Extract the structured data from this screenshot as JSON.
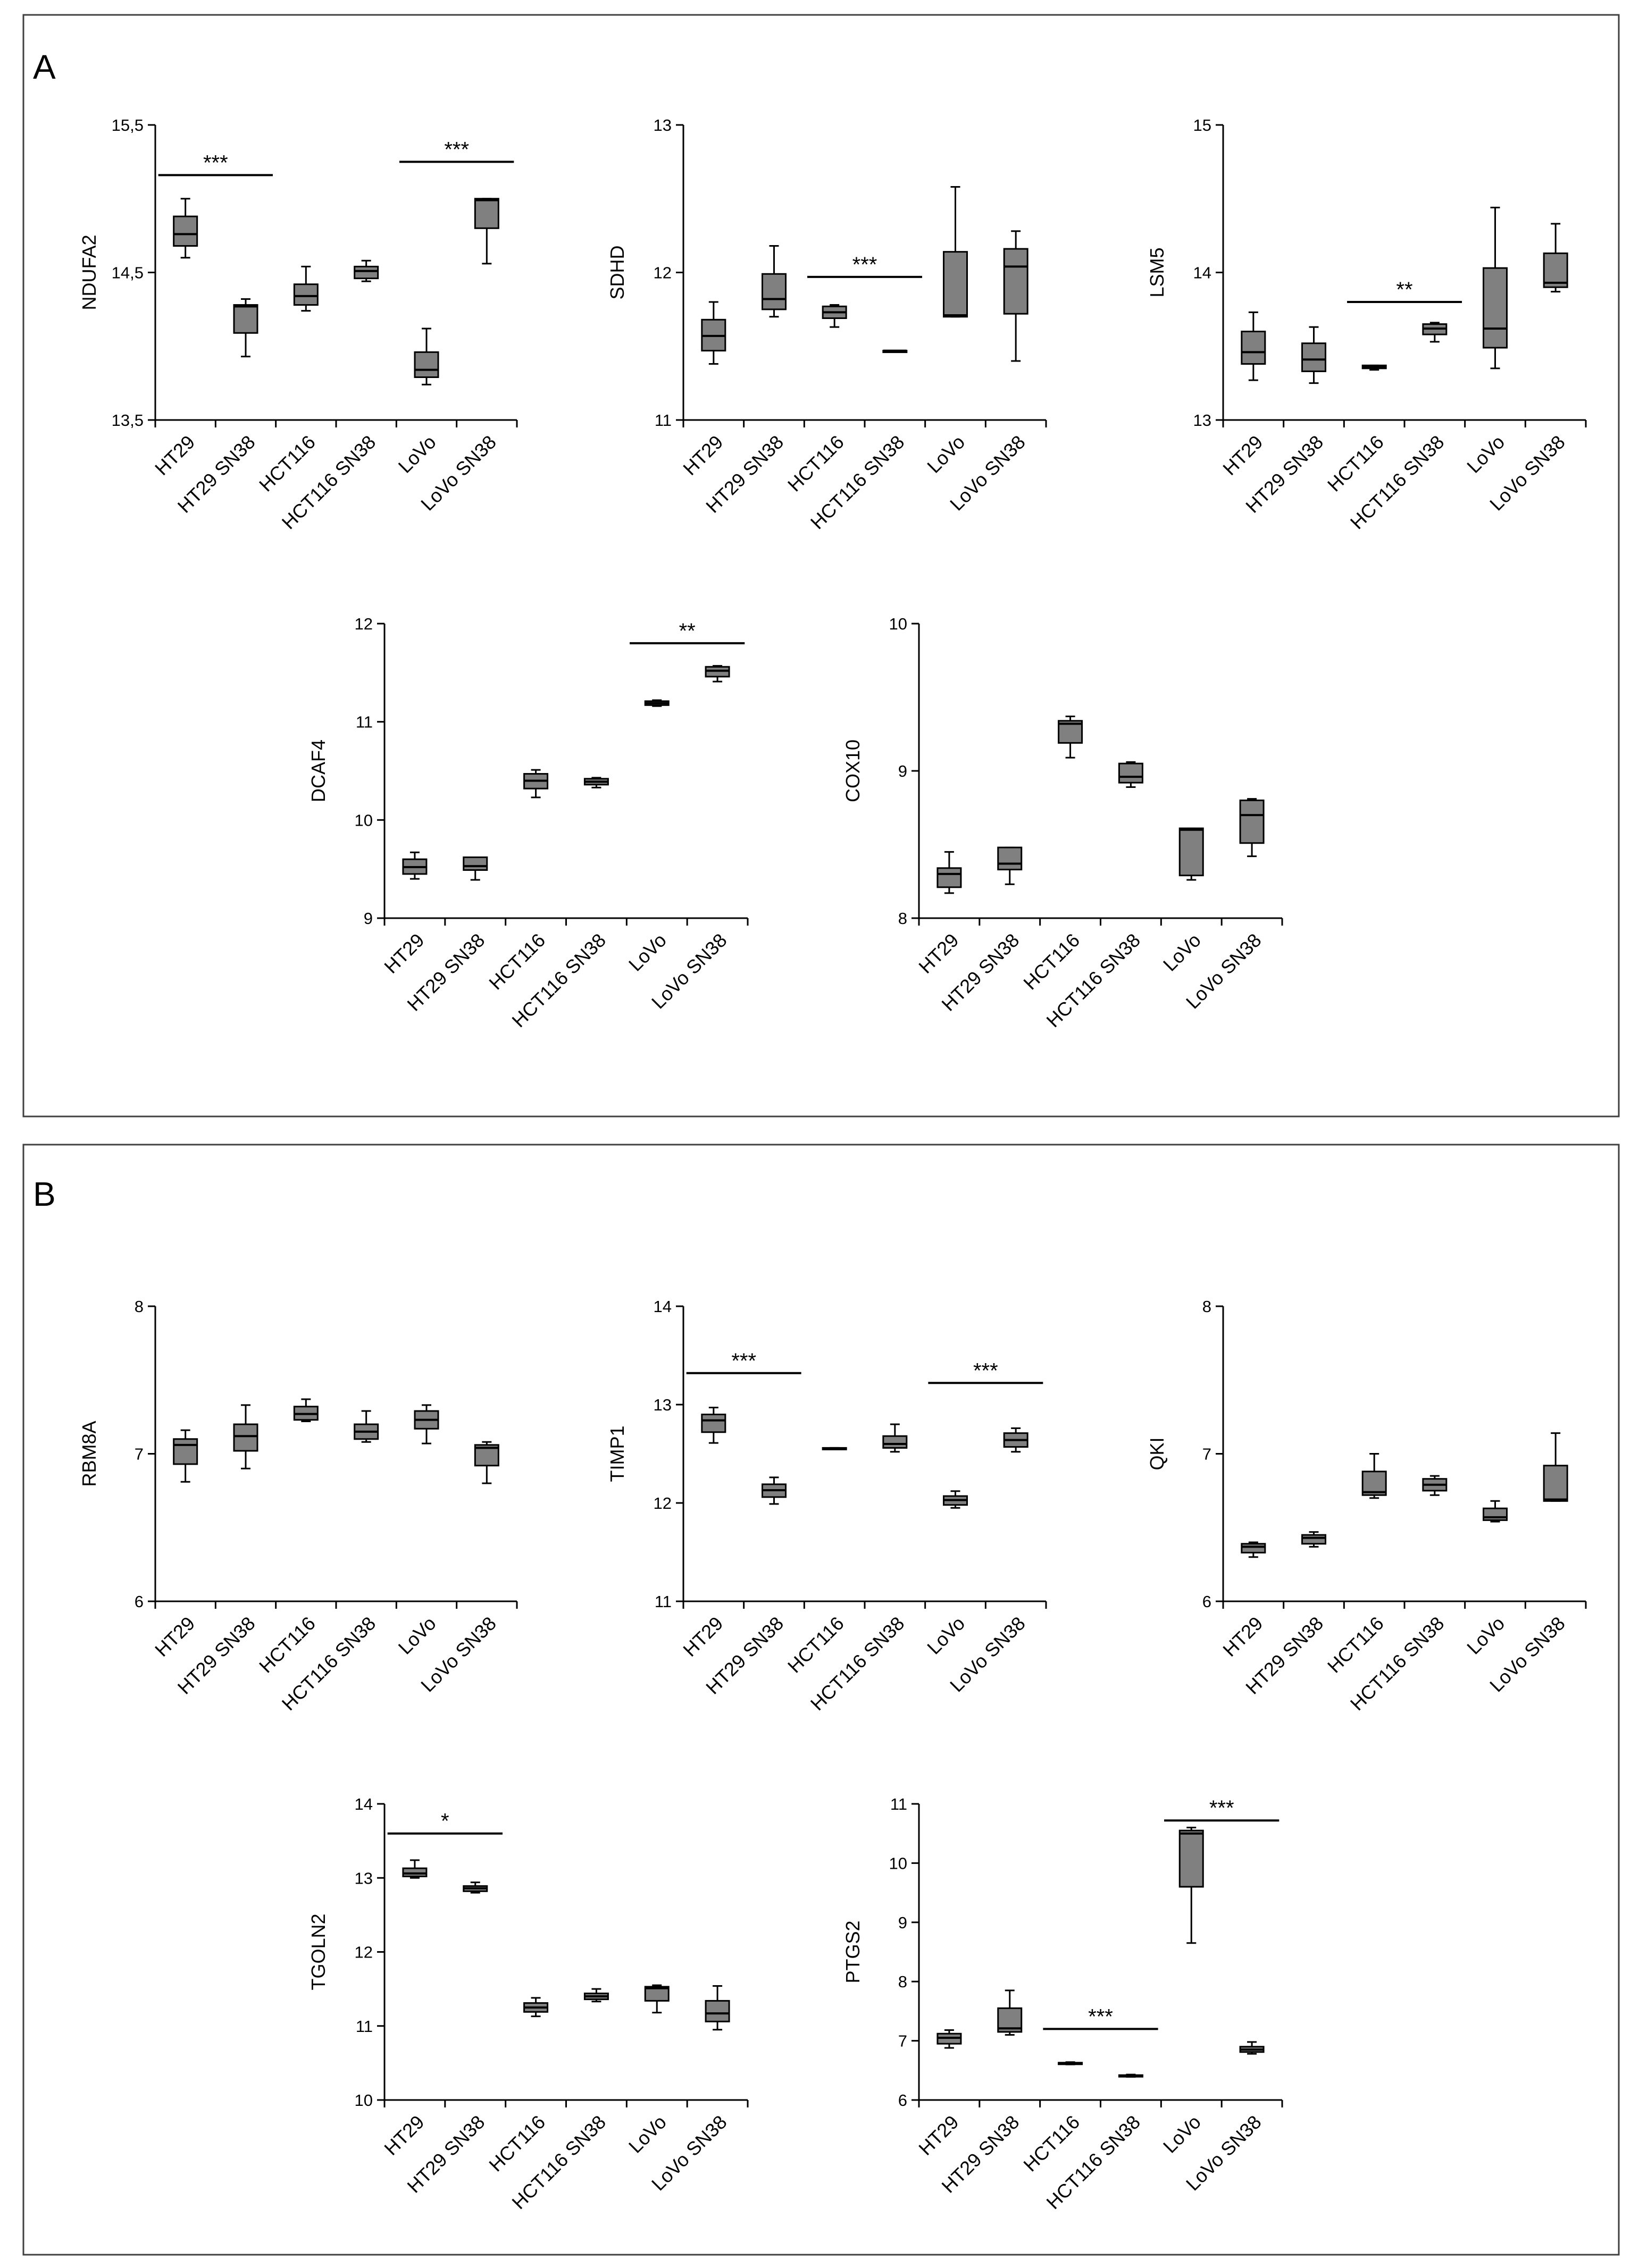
{
  "colors": {
    "box_fill": "#808080",
    "stroke": "#000000",
    "panel_border": "#404040"
  },
  "panels": [
    {
      "label": "A"
    },
    {
      "label": "B"
    }
  ],
  "chart_data": [
    {
      "type": "box",
      "panel": "A",
      "title": "",
      "ylabel": "NDUFA2",
      "xlabel": "",
      "ylim": [
        13.5,
        15.5
      ],
      "yticks": [
        13.5,
        14.5,
        15.5
      ],
      "ytick_labels": [
        "13,5",
        "14,5",
        "15,5"
      ],
      "categories": [
        "HT29",
        "HT29 SN38",
        "HCT116",
        "HCT116 SN38",
        "LoVo",
        "LoVo SN38"
      ],
      "boxes": [
        {
          "min": 14.6,
          "q1": 14.68,
          "median": 14.76,
          "q3": 14.88,
          "max": 15.0
        },
        {
          "min": 13.93,
          "q1": 14.09,
          "median": 14.27,
          "q3": 14.28,
          "max": 14.32
        },
        {
          "min": 14.24,
          "q1": 14.28,
          "median": 14.34,
          "q3": 14.42,
          "max": 14.54
        },
        {
          "min": 14.44,
          "q1": 14.46,
          "median": 14.51,
          "q3": 14.54,
          "max": 14.58
        },
        {
          "min": 13.74,
          "q1": 13.79,
          "median": 13.84,
          "q3": 13.96,
          "max": 14.12
        },
        {
          "min": 14.56,
          "q1": 14.8,
          "median": 14.99,
          "q3": 15.0,
          "max": 15.0
        }
      ],
      "significance": [
        {
          "from": 0,
          "to": 1,
          "label": "***",
          "y": 15.16
        },
        {
          "from": 4,
          "to": 5,
          "label": "***",
          "y": 15.25
        }
      ]
    },
    {
      "type": "box",
      "panel": "A",
      "title": "",
      "ylabel": "SDHD",
      "xlabel": "",
      "ylim": [
        11,
        13
      ],
      "yticks": [
        11,
        12,
        13
      ],
      "ytick_labels": [
        "11",
        "12",
        "13"
      ],
      "categories": [
        "HT29",
        "HT29 SN38",
        "HCT116",
        "HCT116 SN38",
        "LoVo",
        "LoVo SN38"
      ],
      "boxes": [
        {
          "min": 11.38,
          "q1": 11.47,
          "median": 11.57,
          "q3": 11.68,
          "max": 11.8
        },
        {
          "min": 11.7,
          "q1": 11.75,
          "median": 11.82,
          "q3": 11.99,
          "max": 12.18
        },
        {
          "min": 11.63,
          "q1": 11.69,
          "median": 11.73,
          "q3": 11.77,
          "max": 11.78
        },
        {
          "min": 11.47,
          "q1": 11.47,
          "median": 11.47,
          "q3": 11.47,
          "max": 11.47
        },
        {
          "min": 11.7,
          "q1": 11.7,
          "median": 11.71,
          "q3": 12.14,
          "max": 12.58
        },
        {
          "min": 11.4,
          "q1": 11.72,
          "median": 12.04,
          "q3": 12.16,
          "max": 12.28
        }
      ],
      "significance": [
        {
          "from": 2,
          "to": 3,
          "label": "***",
          "y": 11.97
        }
      ]
    },
    {
      "type": "box",
      "panel": "A",
      "title": "",
      "ylabel": "LSM5",
      "xlabel": "",
      "ylim": [
        13,
        15
      ],
      "yticks": [
        13,
        14,
        15
      ],
      "ytick_labels": [
        "13",
        "14",
        "15"
      ],
      "categories": [
        "HT29",
        "HT29 SN38",
        "HCT116",
        "HCT116 SN38",
        "LoVo",
        "LoVo SN38"
      ],
      "boxes": [
        {
          "min": 13.27,
          "q1": 13.38,
          "median": 13.46,
          "q3": 13.6,
          "max": 13.73
        },
        {
          "min": 13.25,
          "q1": 13.33,
          "median": 13.41,
          "q3": 13.52,
          "max": 13.63
        },
        {
          "min": 13.34,
          "q1": 13.35,
          "median": 13.36,
          "q3": 13.37,
          "max": 13.37
        },
        {
          "min": 13.53,
          "q1": 13.58,
          "median": 13.62,
          "q3": 13.65,
          "max": 13.66
        },
        {
          "min": 13.35,
          "q1": 13.49,
          "median": 13.62,
          "q3": 14.03,
          "max": 14.44
        },
        {
          "min": 13.87,
          "q1": 13.9,
          "median": 13.93,
          "q3": 14.13,
          "max": 14.33
        }
      ],
      "significance": [
        {
          "from": 2,
          "to": 3,
          "label": "**",
          "y": 13.8
        }
      ]
    },
    {
      "type": "box",
      "panel": "A",
      "title": "",
      "ylabel": "DCAF4",
      "xlabel": "",
      "ylim": [
        9,
        12
      ],
      "yticks": [
        9,
        10,
        11,
        12
      ],
      "ytick_labels": [
        "9",
        "10",
        "11",
        "12"
      ],
      "categories": [
        "HT29",
        "HT29 SN38",
        "HCT116",
        "HCT116 SN38",
        "LoVo",
        "LoVo SN38"
      ],
      "boxes": [
        {
          "min": 9.4,
          "q1": 9.45,
          "median": 9.52,
          "q3": 9.6,
          "max": 9.67
        },
        {
          "min": 9.39,
          "q1": 9.49,
          "median": 9.53,
          "q3": 9.62,
          "max": 9.62
        },
        {
          "min": 10.23,
          "q1": 10.32,
          "median": 10.4,
          "q3": 10.47,
          "max": 10.51
        },
        {
          "min": 10.33,
          "q1": 10.36,
          "median": 10.39,
          "q3": 10.42,
          "max": 10.43
        },
        {
          "min": 11.16,
          "q1": 11.17,
          "median": 11.19,
          "q3": 11.21,
          "max": 11.22
        },
        {
          "min": 11.41,
          "q1": 11.46,
          "median": 11.52,
          "q3": 11.56,
          "max": 11.57
        }
      ],
      "significance": [
        {
          "from": 4,
          "to": 5,
          "label": "**",
          "y": 11.8
        }
      ]
    },
    {
      "type": "box",
      "panel": "A",
      "title": "",
      "ylabel": "COX10",
      "xlabel": "",
      "ylim": [
        8,
        10
      ],
      "yticks": [
        8,
        9,
        10
      ],
      "ytick_labels": [
        "8",
        "9",
        "10"
      ],
      "categories": [
        "HT29",
        "HT29 SN38",
        "HCT116",
        "HCT116 SN38",
        "LoVo",
        "LoVo SN38"
      ],
      "boxes": [
        {
          "min": 8.17,
          "q1": 8.21,
          "median": 8.3,
          "q3": 8.34,
          "max": 8.45
        },
        {
          "min": 8.23,
          "q1": 8.33,
          "median": 8.37,
          "q3": 8.48,
          "max": 8.48
        },
        {
          "min": 9.09,
          "q1": 9.19,
          "median": 9.32,
          "q3": 9.34,
          "max": 9.37
        },
        {
          "min": 8.89,
          "q1": 8.92,
          "median": 8.96,
          "q3": 9.05,
          "max": 9.06
        },
        {
          "min": 8.26,
          "q1": 8.29,
          "median": 8.6,
          "q3": 8.61,
          "max": 8.61
        },
        {
          "min": 8.42,
          "q1": 8.51,
          "median": 8.7,
          "q3": 8.8,
          "max": 8.81
        }
      ],
      "significance": []
    },
    {
      "type": "box",
      "panel": "B",
      "title": "",
      "ylabel": "RBM8A",
      "xlabel": "",
      "ylim": [
        6,
        8
      ],
      "yticks": [
        6,
        7,
        8
      ],
      "ytick_labels": [
        "6",
        "7",
        "8"
      ],
      "categories": [
        "HT29",
        "HT29 SN38",
        "HCT116",
        "HCT116 SN38",
        "LoVo",
        "LoVo SN38"
      ],
      "boxes": [
        {
          "min": 6.81,
          "q1": 6.93,
          "median": 7.06,
          "q3": 7.1,
          "max": 7.16
        },
        {
          "min": 6.9,
          "q1": 7.02,
          "median": 7.12,
          "q3": 7.2,
          "max": 7.33
        },
        {
          "min": 7.22,
          "q1": 7.23,
          "median": 7.27,
          "q3": 7.32,
          "max": 7.37
        },
        {
          "min": 7.08,
          "q1": 7.1,
          "median": 7.15,
          "q3": 7.2,
          "max": 7.29
        },
        {
          "min": 7.07,
          "q1": 7.17,
          "median": 7.23,
          "q3": 7.29,
          "max": 7.33
        },
        {
          "min": 6.8,
          "q1": 6.92,
          "median": 7.04,
          "q3": 7.06,
          "max": 7.08
        }
      ],
      "significance": []
    },
    {
      "type": "box",
      "panel": "B",
      "title": "",
      "ylabel": "TIMP1",
      "xlabel": "",
      "ylim": [
        11,
        14
      ],
      "yticks": [
        11,
        12,
        13,
        14
      ],
      "ytick_labels": [
        "11",
        "12",
        "13",
        "14"
      ],
      "categories": [
        "HT29",
        "HT29 SN38",
        "HCT116",
        "HCT116 SN38",
        "LoVo",
        "LoVo SN38"
      ],
      "boxes": [
        {
          "min": 12.61,
          "q1": 12.72,
          "median": 12.84,
          "q3": 12.9,
          "max": 12.97
        },
        {
          "min": 11.99,
          "q1": 12.06,
          "median": 12.13,
          "q3": 12.19,
          "max": 12.26
        },
        {
          "min": 12.55,
          "q1": 12.55,
          "median": 12.55,
          "q3": 12.56,
          "max": 12.56
        },
        {
          "min": 12.52,
          "q1": 12.56,
          "median": 12.6,
          "q3": 12.68,
          "max": 12.8
        },
        {
          "min": 11.95,
          "q1": 11.98,
          "median": 12.03,
          "q3": 12.07,
          "max": 12.12
        },
        {
          "min": 12.52,
          "q1": 12.57,
          "median": 12.64,
          "q3": 12.71,
          "max": 12.76
        }
      ],
      "significance": [
        {
          "from": 0,
          "to": 1,
          "label": "***",
          "y": 13.32
        },
        {
          "from": 4,
          "to": 5,
          "label": "***",
          "y": 13.22
        }
      ]
    },
    {
      "type": "box",
      "panel": "B",
      "title": "",
      "ylabel": "QKI",
      "xlabel": "",
      "ylim": [
        6,
        8
      ],
      "yticks": [
        6,
        7,
        8
      ],
      "ytick_labels": [
        "6",
        "7",
        "8"
      ],
      "categories": [
        "HT29",
        "HT29 SN38",
        "HCT116",
        "HCT116 SN38",
        "LoVo",
        "LoVo SN38"
      ],
      "boxes": [
        {
          "min": 6.3,
          "q1": 6.33,
          "median": 6.37,
          "q3": 6.39,
          "max": 6.4
        },
        {
          "min": 6.37,
          "q1": 6.39,
          "median": 6.43,
          "q3": 6.45,
          "max": 6.47
        },
        {
          "min": 6.7,
          "q1": 6.72,
          "median": 6.74,
          "q3": 6.88,
          "max": 7.0
        },
        {
          "min": 6.72,
          "q1": 6.75,
          "median": 6.79,
          "q3": 6.83,
          "max": 6.85
        },
        {
          "min": 6.54,
          "q1": 6.55,
          "median": 6.57,
          "q3": 6.63,
          "max": 6.68
        },
        {
          "min": 6.68,
          "q1": 6.68,
          "median": 6.69,
          "q3": 6.92,
          "max": 7.14
        }
      ],
      "significance": []
    },
    {
      "type": "box",
      "panel": "B",
      "title": "",
      "ylabel": "TGOLN2",
      "xlabel": "",
      "ylim": [
        10,
        14
      ],
      "yticks": [
        10,
        11,
        12,
        13,
        14
      ],
      "ytick_labels": [
        "10",
        "11",
        "12",
        "13",
        "14"
      ],
      "categories": [
        "HT29",
        "HT29 SN38",
        "HCT116",
        "HCT116 SN38",
        "LoVo",
        "LoVo SN38"
      ],
      "boxes": [
        {
          "min": 13.0,
          "q1": 13.02,
          "median": 13.06,
          "q3": 13.13,
          "max": 13.24
        },
        {
          "min": 12.8,
          "q1": 12.82,
          "median": 12.86,
          "q3": 12.89,
          "max": 12.94
        },
        {
          "min": 11.13,
          "q1": 11.19,
          "median": 11.25,
          "q3": 11.31,
          "max": 11.38
        },
        {
          "min": 11.33,
          "q1": 11.36,
          "median": 11.4,
          "q3": 11.44,
          "max": 11.5
        },
        {
          "min": 11.18,
          "q1": 11.34,
          "median": 11.51,
          "q3": 11.53,
          "max": 11.55
        },
        {
          "min": 10.95,
          "q1": 11.06,
          "median": 11.17,
          "q3": 11.34,
          "max": 11.54
        }
      ],
      "significance": [
        {
          "from": 0,
          "to": 1,
          "label": "*",
          "y": 13.6
        }
      ]
    },
    {
      "type": "box",
      "panel": "B",
      "title": "",
      "ylabel": "PTGS2",
      "xlabel": "",
      "ylim": [
        6,
        11
      ],
      "yticks": [
        6,
        7,
        8,
        9,
        10,
        11
      ],
      "ytick_labels": [
        "6",
        "7",
        "8",
        "9",
        "10",
        "11"
      ],
      "categories": [
        "HT29",
        "HT29 SN38",
        "HCT116",
        "HCT116 SN38",
        "LoVo",
        "LoVo SN38"
      ],
      "boxes": [
        {
          "min": 6.88,
          "q1": 6.95,
          "median": 7.05,
          "q3": 7.12,
          "max": 7.18
        },
        {
          "min": 7.1,
          "q1": 7.15,
          "median": 7.21,
          "q3": 7.55,
          "max": 7.85
        },
        {
          "min": 6.6,
          "q1": 6.61,
          "median": 6.62,
          "q3": 6.63,
          "max": 6.64
        },
        {
          "min": 6.39,
          "q1": 6.4,
          "median": 6.41,
          "q3": 6.42,
          "max": 6.43
        },
        {
          "min": 8.65,
          "q1": 9.6,
          "median": 10.5,
          "q3": 10.55,
          "max": 10.6
        },
        {
          "min": 6.78,
          "q1": 6.81,
          "median": 6.85,
          "q3": 6.9,
          "max": 6.98
        }
      ],
      "significance": [
        {
          "from": 2,
          "to": 3,
          "label": "***",
          "y": 7.2
        },
        {
          "from": 4,
          "to": 5,
          "label": "***",
          "y": 10.72
        }
      ]
    }
  ]
}
